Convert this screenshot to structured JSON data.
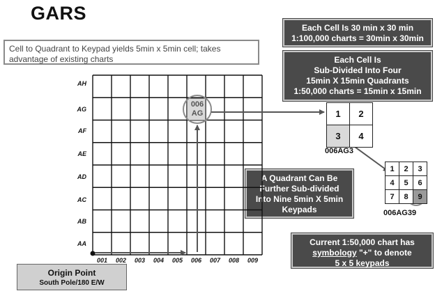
{
  "title": "GARS",
  "note": "Cell to Quadrant to Keypad yields 5min x 5min cell; takes advantage of existing charts",
  "info_boxes": {
    "cell_size": [
      "Each Cell Is 30 min x 30 min",
      "1:100,000 charts = 30min x 30min"
    ],
    "quadrants": [
      "Each Cell Is",
      "Sub-Divided Into Four",
      "15min X 15min Quadrants",
      "1:50,000 charts = 15min x 15min"
    ],
    "keypads": [
      "A Quadrant Can Be",
      "Further Sub-divided",
      "Into Nine 5min X 5min",
      "Keypads"
    ],
    "symbology": {
      "line1": "Current 1:50,000 chart has",
      "line2_underlined": "symbology",
      "line2_rest": " \"+\"  to denote",
      "line3": "5 x 5 keypads"
    }
  },
  "origin": {
    "title": "Origin Point",
    "subtitle": "South Pole/180 E/W"
  },
  "grid": {
    "row_labels": [
      "AH",
      "AG",
      "AF",
      "AE",
      "AD",
      "AC",
      "AB",
      "AA"
    ],
    "col_labels": [
      "001",
      "002",
      "003",
      "004",
      "005",
      "006",
      "007",
      "008",
      "009"
    ],
    "highlight_cell": {
      "line1": "006",
      "line2": "AG"
    }
  },
  "quadrant_grid": {
    "cells": [
      "1",
      "2",
      "3",
      "4"
    ],
    "highlighted": "3",
    "caption": "006AG3"
  },
  "keypad_grid": {
    "cells": [
      "1",
      "2",
      "3",
      "4",
      "5",
      "6",
      "7",
      "8",
      "9"
    ],
    "highlighted": "9",
    "caption": "006AG39"
  },
  "colors": {
    "dark_box": "#4a4a4a",
    "highlight_fill": "#d9d9d9",
    "circle_stroke": "#8a8a8a"
  }
}
